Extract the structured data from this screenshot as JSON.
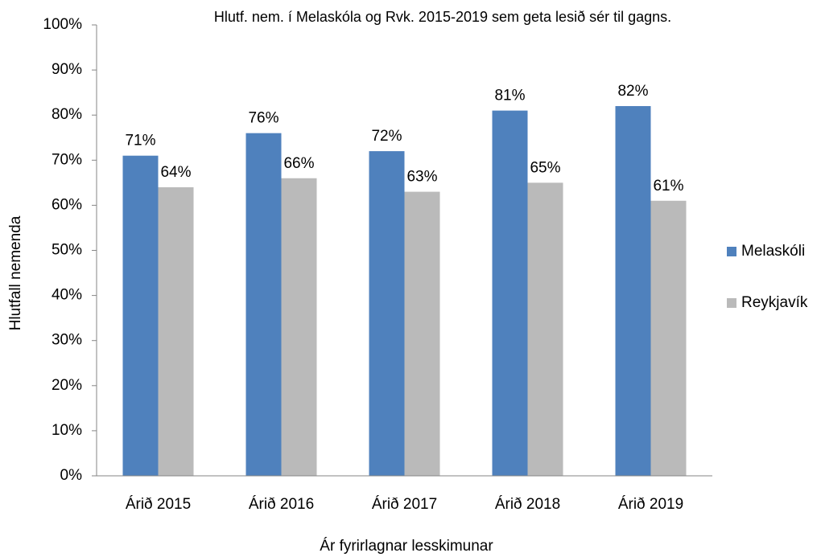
{
  "chart_data": {
    "type": "bar",
    "title": "Hlutf. nem. í Melaskóla og Rvk. 2015-2019  sem geta lesið sér til gagns.",
    "x_label": "Ár fyrirlagnar lesskimunar",
    "y_label": "Hlutfall nemenda",
    "categories": [
      "Árið 2015",
      "Árið 2016",
      "Árið 2017",
      "Árið 2018",
      "Árið 2019"
    ],
    "series": [
      {
        "name": "Melaskóli",
        "color": "#4f81bd",
        "values": [
          71,
          76,
          72,
          81,
          82
        ],
        "value_labels": [
          "71%",
          "76%",
          "72%",
          "81%",
          "82%"
        ]
      },
      {
        "name": "Reykjavík",
        "color": "#bababa",
        "values": [
          64,
          66,
          63,
          65,
          61
        ],
        "value_labels": [
          "64%",
          "66%",
          "63%",
          "65%",
          "61%"
        ]
      }
    ],
    "ylim": [
      0,
      100
    ],
    "yticks": [
      {
        "value": 0,
        "label": "0%"
      },
      {
        "value": 10,
        "label": "10%"
      },
      {
        "value": 20,
        "label": "20%"
      },
      {
        "value": 30,
        "label": "30%"
      },
      {
        "value": 40,
        "label": "40%"
      },
      {
        "value": 50,
        "label": "50%"
      },
      {
        "value": 60,
        "label": "60%"
      },
      {
        "value": 70,
        "label": "70%"
      },
      {
        "value": 80,
        "label": "80%"
      },
      {
        "value": 90,
        "label": "90%"
      },
      {
        "value": 100,
        "label": "100%"
      }
    ],
    "grid": false,
    "legend": "right"
  }
}
